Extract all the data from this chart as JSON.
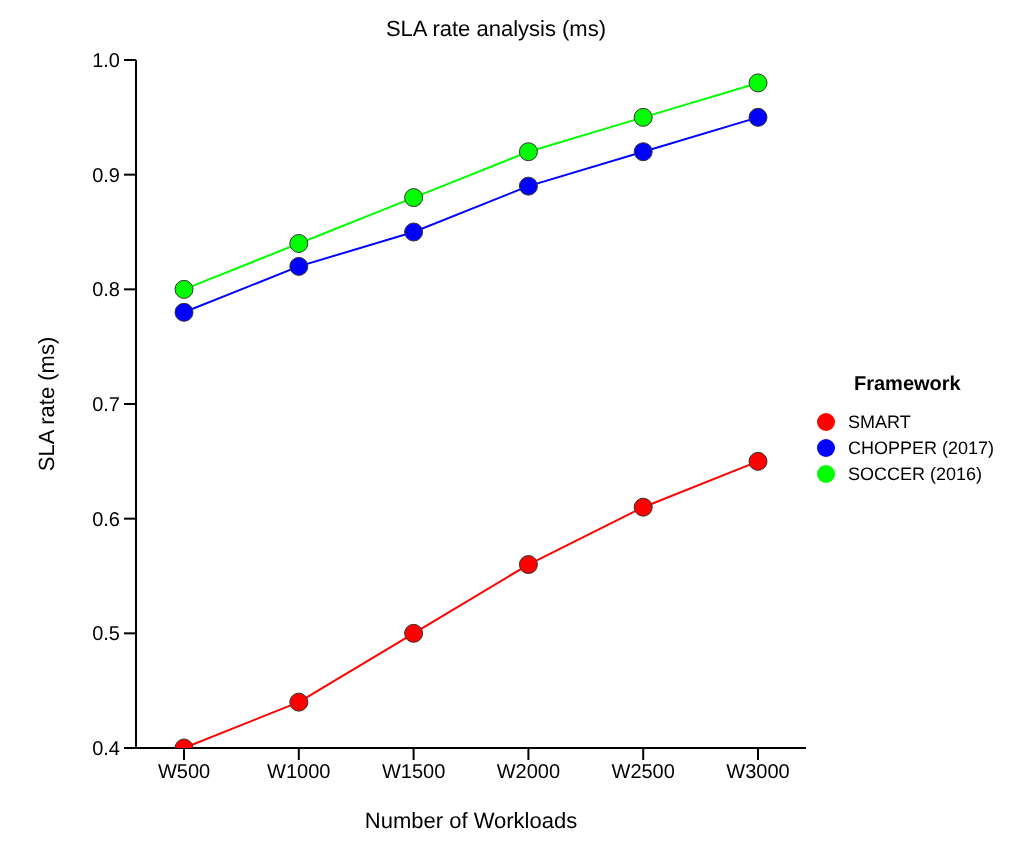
{
  "chart_data": {
    "type": "line",
    "title": "SLA rate analysis (ms)",
    "xlabel": "Number of Workloads",
    "ylabel": "SLA rate (ms)",
    "legend_title": "Framework",
    "categories": [
      "W500",
      "W1000",
      "W1500",
      "W2000",
      "W2500",
      "W3000"
    ],
    "series": [
      {
        "name": "SMART",
        "color": "#ff0000",
        "values": [
          0.4,
          0.44,
          0.5,
          0.56,
          0.61,
          0.65
        ]
      },
      {
        "name": "CHOPPER (2017)",
        "color": "#0000ff",
        "values": [
          0.78,
          0.82,
          0.85,
          0.89,
          0.92,
          0.95
        ]
      },
      {
        "name": "SOCCER (2016)",
        "color": "#00ff00",
        "values": [
          0.8,
          0.84,
          0.88,
          0.92,
          0.95,
          0.98
        ]
      }
    ],
    "ylim": [
      0.4,
      1.0
    ],
    "yticks": [
      {
        "value": 0.4,
        "label": "0.4"
      },
      {
        "value": 0.5,
        "label": "0.5"
      },
      {
        "value": 0.6,
        "label": "0.6"
      },
      {
        "value": 0.7,
        "label": "0.7"
      },
      {
        "value": 0.8,
        "label": "0.8"
      },
      {
        "value": 0.9,
        "label": "0.9"
      },
      {
        "value": 1,
        "label": "1.0"
      }
    ],
    "grid": false,
    "legend": "right",
    "marker": "circle",
    "line_style": "solid"
  }
}
